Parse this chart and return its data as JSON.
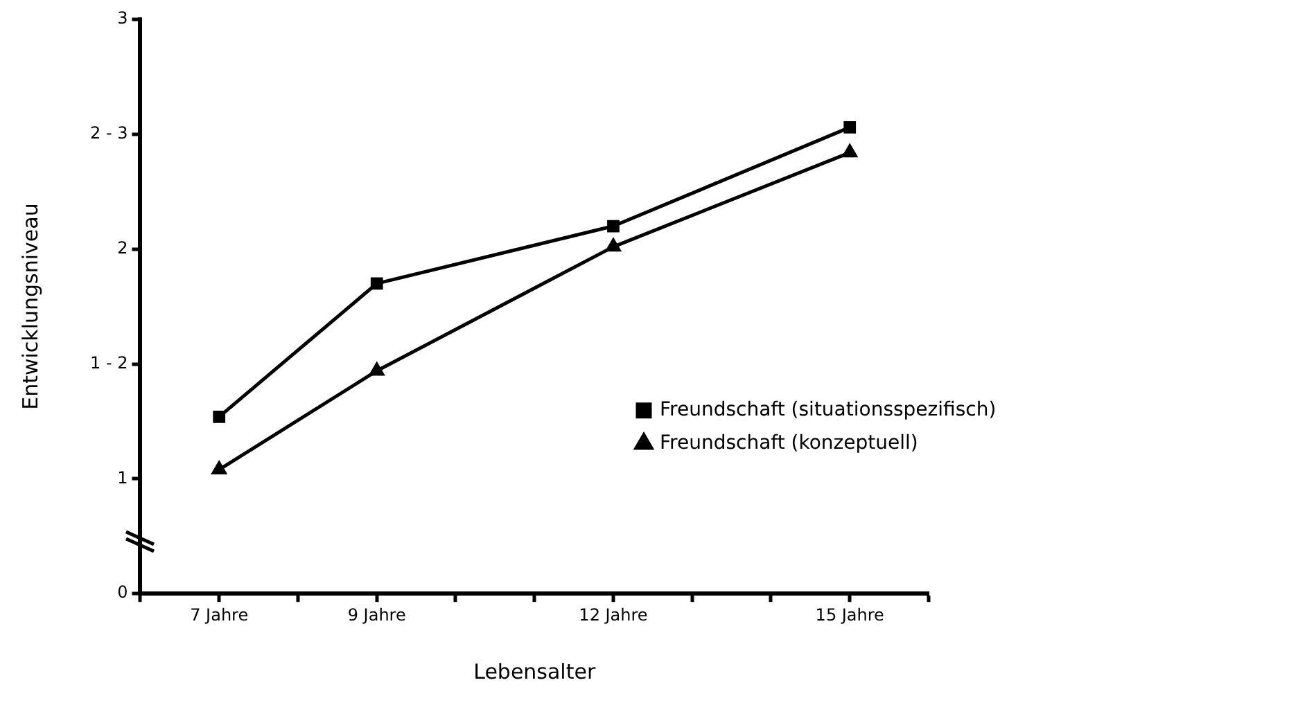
{
  "chart_data": {
    "type": "line",
    "xlabel": "Lebensalter",
    "ylabel": "Entwicklungsniveau",
    "x": [
      7,
      9,
      12,
      15
    ],
    "series": [
      {
        "name": "Freundschaft (situationsspezifisch)",
        "color": "#000000",
        "marker": "square",
        "values": [
          1.27,
          1.85,
          2.1,
          2.53
        ]
      },
      {
        "name": "Freundschaft (konzeptuell)",
        "color": "#000000",
        "marker": "triangle",
        "values": [
          1.04,
          1.47,
          2.01,
          2.42
        ]
      }
    ],
    "xlim": [
      6,
      16
    ],
    "xticks": [
      {
        "value": 6,
        "label": null
      },
      {
        "value": 7,
        "label": "7 Jahre"
      },
      {
        "value": 8,
        "label": null
      },
      {
        "value": 9,
        "label": "9 Jahre"
      },
      {
        "value": 10,
        "label": null
      },
      {
        "value": 11,
        "label": null
      },
      {
        "value": 12,
        "label": "12 Jahre"
      },
      {
        "value": 13,
        "label": null
      },
      {
        "value": 14,
        "label": null
      },
      {
        "value": 15,
        "label": "15 Jahre"
      },
      {
        "value": 16,
        "label": null
      }
    ],
    "ylim": [
      0.5,
      3
    ],
    "yticks": [
      {
        "value": 0.5,
        "label": "0"
      },
      1,
      {
        "value": 1.5,
        "label": "1 - 2"
      },
      2,
      {
        "value": 2.5,
        "label": "2 - 3"
      },
      3
    ],
    "grid": false,
    "legend": "right",
    "line_style": "solid"
  }
}
